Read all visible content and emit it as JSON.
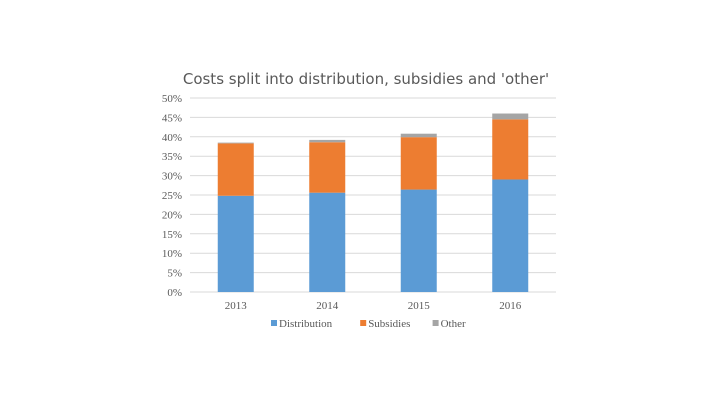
{
  "chart_data": {
    "type": "bar",
    "stacked": true,
    "title": "Costs split into distribution, subsidies and 'other'",
    "xlabel": "",
    "ylabel": "",
    "categories": [
      "2013",
      "2014",
      "2015",
      "2016"
    ],
    "series": [
      {
        "name": "Distribution",
        "color": "#5b9bd5",
        "values": [
          0.248,
          0.256,
          0.264,
          0.29
        ]
      },
      {
        "name": "Subsidies",
        "color": "#ed7d31",
        "values": [
          0.135,
          0.13,
          0.135,
          0.155
        ]
      },
      {
        "name": "Other",
        "color": "#a5a5a5",
        "values": [
          0.002,
          0.006,
          0.009,
          0.015
        ]
      }
    ],
    "ylim": [
      0,
      0.5
    ],
    "yticks": [
      "0%",
      "5%",
      "10%",
      "15%",
      "20%",
      "25%",
      "30%",
      "35%",
      "40%",
      "45%",
      "50%"
    ],
    "grid": true,
    "legend_position": "bottom"
  }
}
